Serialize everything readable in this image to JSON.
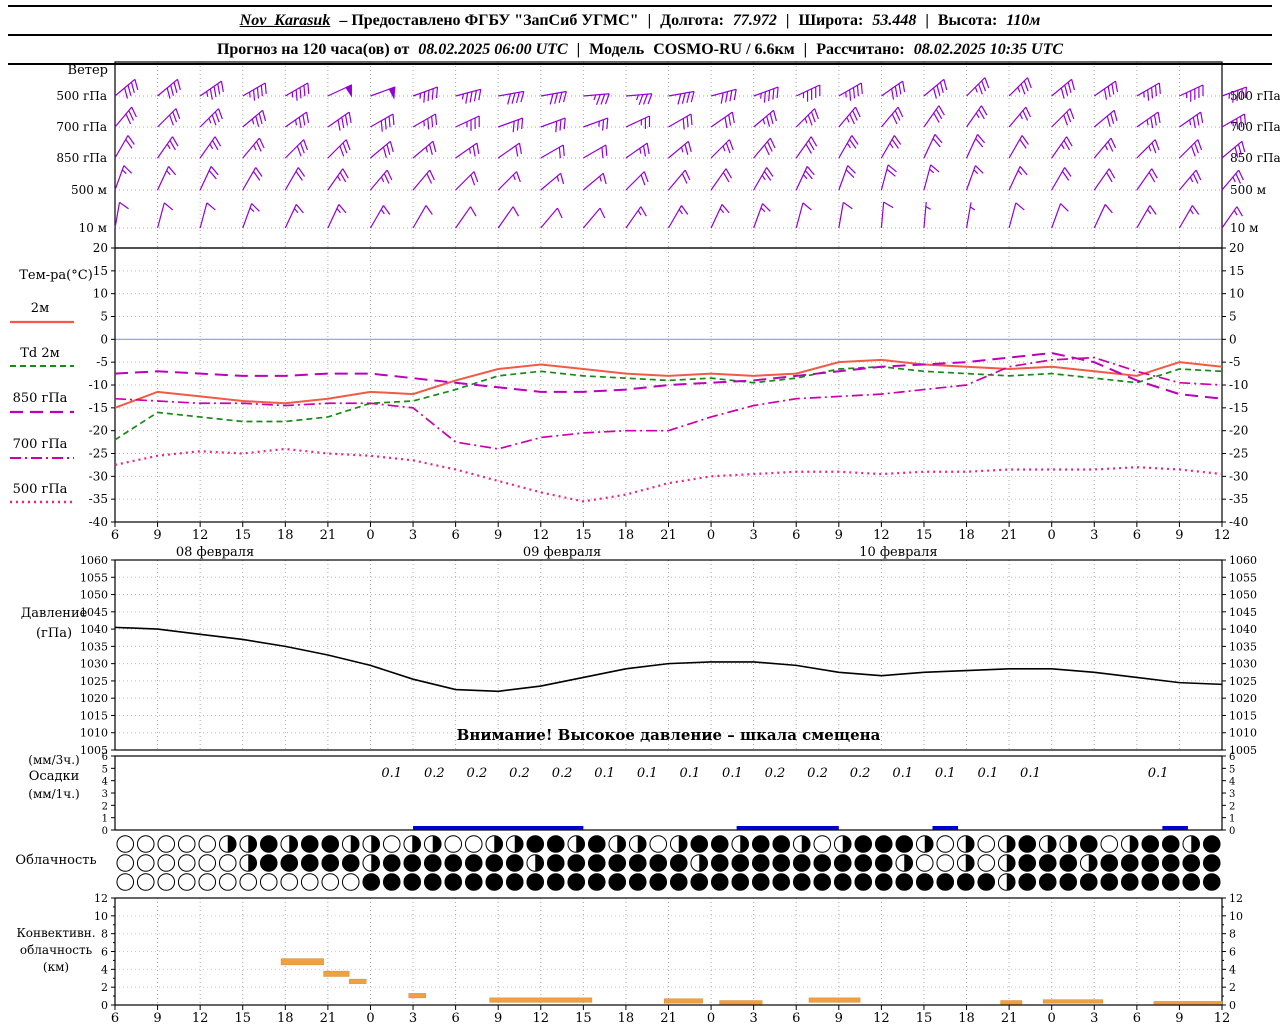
{
  "header": {
    "line1": {
      "station": "Nov_Karasuk",
      "provider": "– Предоставлено ФГБУ \"ЗапСиб УГМС\"",
      "sep": "|",
      "lon_label": "Долгота:",
      "lon_value": "77.972",
      "lat_label": "Широта:",
      "lat_value": "53.448",
      "alt_label": "Высота:",
      "alt_value": "110м"
    },
    "line2": {
      "forecast_label": "Прогноз на 120 часа(ов) от",
      "forecast_time": "08.02.2025 06:00 UTC",
      "sep": "|",
      "model_label": "Модель",
      "model_value": "COSMO-RU / 6.6км",
      "calc_label": "Рассчитано:",
      "calc_value": "08.02.2025 10:35 UTC"
    }
  },
  "axis": {
    "hours": [
      6,
      9,
      12,
      15,
      18,
      21,
      0,
      3,
      6,
      9,
      12,
      15,
      18,
      21,
      0,
      3,
      6,
      9,
      12,
      15,
      18,
      21,
      0,
      3,
      6,
      9,
      12
    ],
    "dates": [
      {
        "label": "08 февраля",
        "tick": 2.35
      },
      {
        "label": "09 февраля",
        "tick": 10.5
      },
      {
        "label": "10 февраля",
        "tick": 18.4
      }
    ]
  },
  "chart_data": [
    {
      "id": "wind",
      "type": "wind-barbs",
      "panel_label": "Ветер",
      "color": "#9400d3",
      "levels": [
        {
          "label": "500 гПа",
          "dirs": [
            50,
            50,
            55,
            60,
            60,
            65,
            70,
            70,
            75,
            80,
            80,
            85,
            85,
            80,
            75,
            70,
            65,
            60,
            55,
            50,
            45,
            45,
            50,
            55,
            60,
            65,
            70
          ],
          "speeds": [
            40,
            40,
            45,
            45,
            45,
            50,
            50,
            45,
            45,
            40,
            40,
            35,
            35,
            40,
            40,
            45,
            45,
            45,
            40,
            40,
            35,
            35,
            40,
            40,
            45,
            45,
            45
          ]
        },
        {
          "label": "700 гПа",
          "dirs": [
            40,
            45,
            45,
            50,
            55,
            55,
            60,
            60,
            65,
            70,
            70,
            70,
            65,
            60,
            55,
            50,
            45,
            40,
            40,
            35,
            35,
            40,
            45,
            50,
            55,
            55,
            60
          ],
          "speeds": [
            30,
            30,
            35,
            35,
            35,
            40,
            40,
            35,
            35,
            30,
            30,
            25,
            25,
            30,
            30,
            35,
            35,
            35,
            30,
            30,
            25,
            25,
            30,
            30,
            35,
            35,
            35
          ]
        },
        {
          "label": "850 гПа",
          "dirs": [
            30,
            35,
            35,
            40,
            45,
            45,
            50,
            50,
            55,
            55,
            60,
            60,
            55,
            50,
            45,
            40,
            35,
            30,
            30,
            25,
            25,
            30,
            35,
            40,
            45,
            45,
            50
          ],
          "speeds": [
            20,
            25,
            25,
            25,
            30,
            30,
            30,
            25,
            25,
            20,
            20,
            20,
            25,
            25,
            25,
            30,
            30,
            25,
            25,
            20,
            20,
            20,
            25,
            25,
            25,
            30,
            30
          ]
        },
        {
          "label": "500 м",
          "dirs": [
            20,
            25,
            25,
            30,
            30,
            35,
            40,
            40,
            45,
            45,
            50,
            50,
            45,
            40,
            35,
            30,
            25,
            20,
            15,
            15,
            20,
            25,
            30,
            35,
            35,
            40,
            40
          ],
          "speeds": [
            15,
            15,
            20,
            20,
            20,
            25,
            25,
            20,
            20,
            15,
            15,
            15,
            20,
            20,
            20,
            25,
            25,
            20,
            20,
            15,
            15,
            15,
            20,
            20,
            20,
            25,
            25
          ]
        },
        {
          "label": "10 м",
          "dirs": [
            10,
            15,
            15,
            20,
            25,
            25,
            30,
            30,
            35,
            35,
            40,
            40,
            35,
            30,
            25,
            20,
            15,
            10,
            5,
            5,
            10,
            15,
            20,
            25,
            30,
            30,
            35
          ],
          "speeds": [
            10,
            10,
            10,
            15,
            15,
            15,
            15,
            10,
            10,
            10,
            10,
            10,
            15,
            15,
            15,
            15,
            10,
            10,
            10,
            5,
            5,
            10,
            10,
            10,
            15,
            15,
            15
          ]
        }
      ]
    },
    {
      "id": "temperature",
      "type": "line",
      "panel_label": "Тем-ра(°C)",
      "ylim": [
        -40,
        20
      ],
      "yticks": [
        20,
        15,
        10,
        5,
        0,
        -5,
        -10,
        -15,
        -20,
        -25,
        -30,
        -35,
        -40
      ],
      "zero_line_color": "#9595ff",
      "series": [
        {
          "name": "2м",
          "style": "solid",
          "color": "#f05a46",
          "values": [
            -15,
            -11.5,
            -12.5,
            -13.5,
            -14,
            -13,
            -11.5,
            -12,
            -9,
            -6.5,
            -5.5,
            -6.5,
            -7.5,
            -8,
            -7.5,
            -8,
            -7.5,
            -5,
            -4.5,
            -5.5,
            -6,
            -6.5,
            -6,
            -7,
            -8,
            -5,
            -6
          ]
        },
        {
          "name": "Td 2м",
          "style": "dashed",
          "color": "#188a18",
          "values": [
            -22,
            -16,
            -17,
            -18,
            -18,
            -17,
            -14,
            -13.5,
            -11,
            -8,
            -7,
            -8,
            -8.5,
            -9,
            -8.5,
            -9.5,
            -8.5,
            -6.5,
            -6,
            -7,
            -7.5,
            -8,
            -7.5,
            -8.5,
            -9.5,
            -6.5,
            -7
          ]
        },
        {
          "name": "850 гПа",
          "style": "longdash",
          "color": "#bb00bb",
          "values": [
            -7.5,
            -7,
            -7.5,
            -8,
            -8,
            -7.5,
            -7.5,
            -8.5,
            -9.5,
            -10.5,
            -11.5,
            -11.5,
            -11,
            -10,
            -9.5,
            -9,
            -8,
            -7,
            -6,
            -5.5,
            -5,
            -4,
            -3,
            -5,
            -9,
            -12,
            -13
          ]
        },
        {
          "name": "700 гПа",
          "style": "dashdot",
          "color": "#cc00aa",
          "values": [
            -13,
            -13.5,
            -14,
            -14,
            -14.5,
            -14,
            -14,
            -15,
            -22.5,
            -24,
            -21.5,
            -20.5,
            -20,
            -20,
            -17,
            -14.5,
            -13,
            -12.5,
            -12,
            -11,
            -10,
            -6,
            -4.5,
            -4,
            -7,
            -9.5,
            -10
          ]
        },
        {
          "name": "500 гПа",
          "style": "dotted",
          "color": "#ee2288",
          "values": [
            -27.5,
            -25.5,
            -24.5,
            -25,
            -24,
            -25,
            -25.5,
            -26.5,
            -28.5,
            -31,
            -33.5,
            -35.5,
            -34,
            -31.5,
            -30,
            -29.5,
            -29,
            -29,
            -29.5,
            -29,
            -29,
            -28.5,
            -28.5,
            -28.5,
            -28,
            -28.5,
            -29.5
          ]
        }
      ]
    },
    {
      "id": "pressure",
      "type": "line",
      "label_line1": "Давление",
      "label_line2": "(гПа)",
      "ylim": [
        1005,
        1060
      ],
      "yticks": [
        1060,
        1055,
        1050,
        1045,
        1040,
        1035,
        1030,
        1025,
        1020,
        1015,
        1010,
        1005
      ],
      "color": "#000000",
      "values": [
        1040.5,
        1040,
        1038.5,
        1037,
        1035,
        1032.5,
        1029.5,
        1025.5,
        1022.5,
        1022,
        1023.5,
        1026,
        1028.5,
        1030,
        1030.5,
        1030.5,
        1029.5,
        1027.5,
        1026.5,
        1027.5,
        1028,
        1028.5,
        1028.5,
        1027.5,
        1026,
        1024.5,
        1024
      ],
      "warning": "Внимание! Высокое давление – шкала смещена"
    },
    {
      "id": "precipitation",
      "type": "bar",
      "label_line1": "(мм/3ч.)",
      "label_line2": "Осадки",
      "label_line3": "(мм/1ч.)",
      "ylim": [
        0,
        6
      ],
      "yticks": [
        6,
        5,
        4,
        3,
        2,
        1,
        0
      ],
      "bar_color": "#0000cc",
      "amounts": [
        {
          "slot": 6,
          "label": "0.1"
        },
        {
          "slot": 7,
          "label": "0.2"
        },
        {
          "slot": 8,
          "label": "0.2"
        },
        {
          "slot": 9,
          "label": "0.2"
        },
        {
          "slot": 10,
          "label": "0.2"
        },
        {
          "slot": 11,
          "label": "0.1"
        },
        {
          "slot": 12,
          "label": "0.1"
        },
        {
          "slot": 13,
          "label": "0.1"
        },
        {
          "slot": 14,
          "label": "0.1"
        },
        {
          "slot": 15,
          "label": "0.2"
        },
        {
          "slot": 16,
          "label": "0.2"
        },
        {
          "slot": 17,
          "label": "0.2"
        },
        {
          "slot": 18,
          "label": "0.1"
        },
        {
          "slot": 19,
          "label": "0.1"
        },
        {
          "slot": 20,
          "label": "0.1"
        },
        {
          "slot": 21,
          "label": "0.1"
        },
        {
          "slot": 24,
          "label": "0.1"
        }
      ],
      "bar_segments": [
        [
          7,
          11
        ],
        [
          14.6,
          17
        ],
        [
          19.2,
          19.8
        ],
        [
          24.6,
          25.2
        ]
      ]
    },
    {
      "id": "cloudiness",
      "type": "symbols",
      "panel_label": "Облачность",
      "rows": [
        [
          0,
          0,
          0,
          0,
          0,
          0.5,
          0.5,
          1,
          0.5,
          1,
          1,
          0.5,
          0.5,
          0,
          0.5,
          0.5,
          0,
          0,
          0.5,
          0.5,
          1,
          1,
          0.5,
          1,
          0.5,
          0.5,
          0,
          0.5,
          1,
          1,
          0.5,
          1,
          1,
          0.5,
          0,
          0.5,
          1,
          1,
          1,
          0.5,
          0,
          0.5,
          0,
          0.5,
          1,
          0.5,
          0.5,
          1,
          0,
          0.5,
          1,
          1,
          0.5,
          1
        ],
        [
          0,
          0,
          0,
          0,
          0,
          0,
          0.5,
          1,
          1,
          1,
          1,
          1,
          0.5,
          1,
          1,
          1,
          1,
          1,
          1,
          1,
          0.5,
          1,
          1,
          1,
          1,
          1,
          1,
          1,
          0.5,
          1,
          1,
          1,
          1,
          1,
          1,
          1,
          1,
          1,
          0.5,
          0,
          0,
          0.5,
          0,
          0.5,
          1,
          1,
          1,
          0.5,
          1,
          1,
          1,
          1,
          1,
          1
        ],
        [
          0,
          0,
          0,
          0,
          0,
          0,
          0,
          0,
          0,
          0,
          0,
          0,
          1,
          1,
          1,
          1,
          1,
          1,
          1,
          1,
          1,
          1,
          1,
          1,
          1,
          1,
          1,
          1,
          1,
          1,
          1,
          1,
          1,
          1,
          1,
          1,
          1,
          1,
          1,
          1,
          1,
          1,
          1,
          0.5,
          1,
          1,
          1,
          1,
          1,
          1,
          1,
          1,
          1,
          1
        ]
      ]
    },
    {
      "id": "convective",
      "type": "bar",
      "label_line1": "Конвективн.",
      "label_line2": "облачность",
      "label_line3": "(км)",
      "ylim": [
        0,
        12
      ],
      "yticks": [
        12,
        10,
        8,
        6,
        4,
        2,
        0
      ],
      "color": "#f0a040",
      "segments": [
        {
          "from": 3.9,
          "to": 4.9,
          "base": 4.5,
          "top": 5.2
        },
        {
          "from": 4.9,
          "to": 5.5,
          "base": 3.2,
          "top": 3.8
        },
        {
          "from": 5.5,
          "to": 5.9,
          "base": 2.4,
          "top": 2.9
        },
        {
          "from": 6.9,
          "to": 7.3,
          "base": 0.8,
          "top": 1.3
        },
        {
          "from": 8.8,
          "to": 11.2,
          "base": 0.3,
          "top": 0.8
        },
        {
          "from": 12.9,
          "to": 13.8,
          "base": 0.2,
          "top": 0.7
        },
        {
          "from": 14.2,
          "to": 15.2,
          "base": 0.1,
          "top": 0.5
        },
        {
          "from": 16.3,
          "to": 17.5,
          "base": 0.3,
          "top": 0.8
        },
        {
          "from": 20.8,
          "to": 21.3,
          "base": 0.1,
          "top": 0.5
        },
        {
          "from": 21.8,
          "to": 23.2,
          "base": 0.2,
          "top": 0.6
        },
        {
          "from": 24.4,
          "to": 26,
          "base": 0.1,
          "top": 0.4
        }
      ]
    }
  ]
}
